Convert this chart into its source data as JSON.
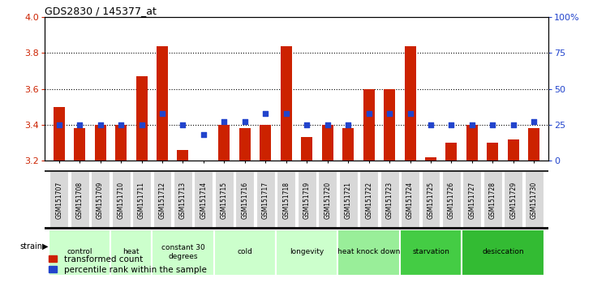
{
  "title": "GDS2830 / 145377_at",
  "samples": [
    "GSM151707",
    "GSM151708",
    "GSM151709",
    "GSM151710",
    "GSM151711",
    "GSM151712",
    "GSM151713",
    "GSM151714",
    "GSM151715",
    "GSM151716",
    "GSM151717",
    "GSM151718",
    "GSM151719",
    "GSM151720",
    "GSM151721",
    "GSM151722",
    "GSM151723",
    "GSM151724",
    "GSM151725",
    "GSM151726",
    "GSM151727",
    "GSM151728",
    "GSM151729",
    "GSM151730"
  ],
  "bar_values": [
    3.5,
    3.38,
    3.4,
    3.4,
    3.67,
    3.84,
    3.26,
    3.2,
    3.4,
    3.38,
    3.4,
    3.84,
    3.33,
    3.4,
    3.38,
    3.6,
    3.6,
    3.84,
    3.22,
    3.3,
    3.4,
    3.3,
    3.32,
    3.38
  ],
  "percentile_values": [
    25,
    25,
    25,
    25,
    25,
    33,
    25,
    18,
    27,
    27,
    33,
    33,
    25,
    25,
    25,
    33,
    33,
    33,
    25,
    25,
    25,
    25,
    25,
    27
  ],
  "groups": [
    {
      "label": "control",
      "start": 0,
      "end": 2,
      "color": "#ccffcc"
    },
    {
      "label": "heat",
      "start": 3,
      "end": 4,
      "color": "#ccffcc"
    },
    {
      "label": "constant 30\ndegrees",
      "start": 5,
      "end": 7,
      "color": "#ccffcc"
    },
    {
      "label": "cold",
      "start": 8,
      "end": 10,
      "color": "#ccffcc"
    },
    {
      "label": "longevity",
      "start": 11,
      "end": 13,
      "color": "#ccffcc"
    },
    {
      "label": "heat knock down",
      "start": 14,
      "end": 16,
      "color": "#99ee99"
    },
    {
      "label": "starvation",
      "start": 17,
      "end": 19,
      "color": "#44cc44"
    },
    {
      "label": "desiccation",
      "start": 20,
      "end": 23,
      "color": "#33bb33"
    }
  ],
  "ylim_left": [
    3.2,
    4.0
  ],
  "ylim_right": [
    0,
    100
  ],
  "yticks_left": [
    3.2,
    3.4,
    3.6,
    3.8,
    4.0
  ],
  "yticks_right": [
    0,
    25,
    50,
    75,
    100
  ],
  "ytick_right_labels": [
    "0",
    "25",
    "50",
    "75",
    "100%"
  ],
  "bar_color": "#cc2200",
  "percentile_color": "#2244cc",
  "tick_label_color_left": "#cc2200",
  "tick_label_color_right": "#2244cc",
  "group_colors": [
    "#ccffcc",
    "#ccffcc",
    "#ccffcc",
    "#ccffcc",
    "#ccffcc",
    "#99ee99",
    "#44cc44",
    "#33bb33"
  ]
}
